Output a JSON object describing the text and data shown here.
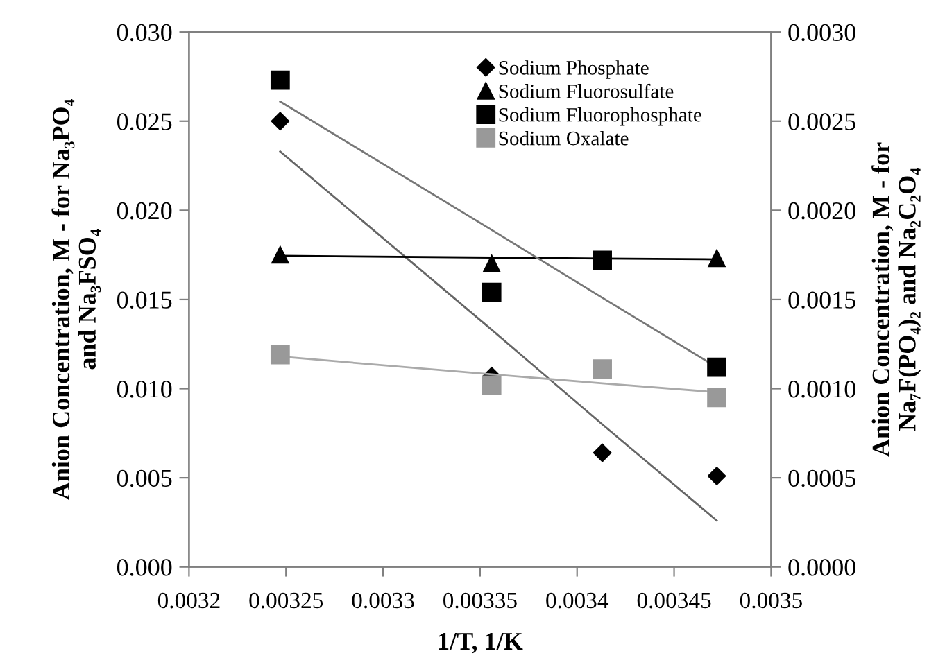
{
  "chart_data": {
    "type": "scatter",
    "xlabel": "1/T, 1/K",
    "ylabel": "Anion Concentration, M - for Na₃PO₄\nand Na₃FSO₄",
    "y2label": "Anion Concentration, M - for\nNa₇F(PO₄)₂ and Na₂C₂O₄",
    "x": [
      0.003247,
      0.003356,
      0.003413,
      0.003472
    ],
    "series": [
      {
        "name": "Sodium Phosphate",
        "marker": "diamond",
        "color": "#000000",
        "values": [
          0.025,
          0.0107,
          0.0064,
          0.0051
        ]
      },
      {
        "name": "Sodium Fluorosulfate",
        "marker": "triangle",
        "color": "#000000",
        "values": [
          0.0175,
          0.017,
          null,
          0.0173
        ]
      },
      {
        "name": "Sodium Fluorophosphate",
        "marker": "square",
        "color": "#000000",
        "axis": "y2",
        "values": [
          0.00273,
          0.00154,
          0.00172,
          0.00112
        ]
      },
      {
        "name": "Sodium Oxalate",
        "marker": "square",
        "color": "#999999",
        "axis": "y2",
        "values": [
          0.00119,
          0.00102,
          0.00111,
          0.00095
        ]
      },
      {
        "type": "line",
        "marker": "none",
        "color": "#666666",
        "values": [
          0.0233,
          0.0133,
          0.008,
          0.0026
        ]
      },
      {
        "type": "line",
        "marker": "none",
        "color": "#000000",
        "values": [
          0.01745,
          0.01735,
          0.0173,
          0.01725
        ]
      },
      {
        "type": "line",
        "marker": "none",
        "color": "#777777",
        "axis": "y2",
        "values": [
          0.00261,
          0.00189,
          0.00151,
          0.00112
        ]
      },
      {
        "type": "line",
        "marker": "none",
        "color": "#aaaaaa",
        "axis": "y2",
        "values": [
          0.00118,
          0.00108,
          0.00103,
          0.00098
        ]
      }
    ],
    "xlim": [
      0.0032,
      0.0035
    ],
    "xticks": [
      0.0032,
      0.00325,
      0.0033,
      0.00335,
      0.0034,
      0.00345,
      0.0035
    ],
    "ylim": [
      0.0,
      0.03
    ],
    "yticks": [
      {
        "value": 0,
        "label": "0.000"
      },
      {
        "value": 0.005,
        "label": "0.005"
      },
      {
        "value": 0.01,
        "label": "0.010"
      },
      {
        "value": 0.015,
        "label": "0.015"
      },
      {
        "value": 0.02,
        "label": "0.020"
      },
      {
        "value": 0.025,
        "label": "0.025"
      },
      {
        "value": 0.03,
        "label": "0.030"
      }
    ],
    "y2lim": [
      0.0,
      0.003
    ],
    "y2ticks": [
      {
        "value": 0,
        "label": "0.0000"
      },
      {
        "value": 0.0005,
        "label": "0.0005"
      },
      {
        "value": 0.001,
        "label": "0.0010"
      },
      {
        "value": 0.0015,
        "label": "0.0015"
      },
      {
        "value": 0.002,
        "label": "0.0020"
      },
      {
        "value": 0.0025,
        "label": "0.0025"
      },
      {
        "value": 0.003,
        "label": "0.0030"
      }
    ],
    "legend": "top right",
    "grid": false
  }
}
